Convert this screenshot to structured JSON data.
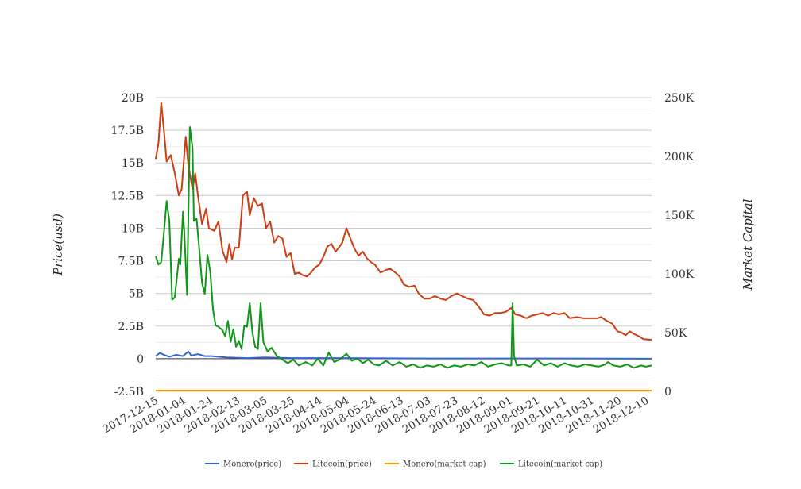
{
  "chart_data": {
    "type": "line",
    "ylabel": "Price(usd)",
    "y2label": "Market Capital",
    "x_tick_labels": [
      "2017-12-15",
      "2018-01-04",
      "2018-01-24",
      "2018-02-13",
      "2018-03-05",
      "2018-03-25",
      "2018-04-14",
      "2018-05-04",
      "2018-05-24",
      "2018-06-13",
      "2018-07-03",
      "2018-07-23",
      "2018-08-12",
      "2018-09-01",
      "2018-09-21",
      "2018-10-11",
      "2018-10-31",
      "2018-11-20",
      "2018-12-10"
    ],
    "x_range": [
      "2017-12-15",
      "2018-12-14"
    ],
    "y_ticks": [
      "-2.5B",
      "0",
      "2.5B",
      "5B",
      "7.5B",
      "10B",
      "12.5B",
      "15B",
      "17.5B",
      "20B"
    ],
    "y_range": [
      -2500000000,
      20000000000
    ],
    "y2_ticks": [
      "0",
      "50K",
      "100K",
      "150K",
      "200K",
      "250K"
    ],
    "y2_range": [
      0,
      250000
    ],
    "grid": true,
    "legend_position": "bottom",
    "series": [
      {
        "name": "Monero(price)",
        "color": "#3366cc",
        "axis": "left",
        "points": [
          [
            "2017-12-15",
            200000000.0
          ],
          [
            "2017-12-18",
            450000000.0
          ],
          [
            "2017-12-21",
            300000000.0
          ],
          [
            "2017-12-25",
            150000000.0
          ],
          [
            "2017-12-30",
            300000000.0
          ],
          [
            "2018-01-04",
            200000000.0
          ],
          [
            "2018-01-08",
            550000000.0
          ],
          [
            "2018-01-10",
            250000000.0
          ],
          [
            "2018-01-15",
            350000000.0
          ],
          [
            "2018-01-20",
            200000000.0
          ],
          [
            "2018-01-25",
            200000000.0
          ],
          [
            "2018-02-05",
            100000000.0
          ],
          [
            "2018-02-20",
            50000000.0
          ],
          [
            "2018-03-05",
            100000000.0
          ],
          [
            "2018-03-25",
            50000000.0
          ],
          [
            "2018-05-04",
            50000000.0
          ],
          [
            "2018-07-03",
            20000000.0
          ],
          [
            "2018-09-21",
            20000000.0
          ],
          [
            "2018-10-11",
            20000000.0
          ],
          [
            "2018-12-14",
            0.0
          ]
        ]
      },
      {
        "name": "Litecoin(price)",
        "color": "#cc3d14",
        "axis": "left",
        "points": [
          [
            "2017-12-15",
            15300000000.0
          ],
          [
            "2017-12-17",
            16500000000.0
          ],
          [
            "2017-12-19",
            19600000000.0
          ],
          [
            "2017-12-21",
            17500000000.0
          ],
          [
            "2017-12-23",
            15100000000.0
          ],
          [
            "2017-12-26",
            15600000000.0
          ],
          [
            "2017-12-29",
            14200000000.0
          ],
          [
            "2018-01-01",
            12500000000.0
          ],
          [
            "2018-01-03",
            13000000000.0
          ],
          [
            "2018-01-06",
            17000000000.0
          ],
          [
            "2018-01-08",
            14800000000.0
          ],
          [
            "2018-01-11",
            13000000000.0
          ],
          [
            "2018-01-13",
            14200000000.0
          ],
          [
            "2018-01-15",
            12500000000.0
          ],
          [
            "2018-01-18",
            10300000000.0
          ],
          [
            "2018-01-21",
            11500000000.0
          ],
          [
            "2018-01-23",
            10000000000.0
          ],
          [
            "2018-01-27",
            9800000000.0
          ],
          [
            "2018-01-30",
            10500000000.0
          ],
          [
            "2018-02-02",
            8300000000.0
          ],
          [
            "2018-02-05",
            7400000000.0
          ],
          [
            "2018-02-07",
            8800000000.0
          ],
          [
            "2018-02-09",
            7600000000.0
          ],
          [
            "2018-02-11",
            8500000000.0
          ],
          [
            "2018-02-14",
            8500000000.0
          ],
          [
            "2018-02-17",
            12500000000.0
          ],
          [
            "2018-02-20",
            12800000000.0
          ],
          [
            "2018-02-22",
            11000000000.0
          ],
          [
            "2018-02-25",
            12300000000.0
          ],
          [
            "2018-02-28",
            11700000000.0
          ],
          [
            "2018-03-03",
            11900000000.0
          ],
          [
            "2018-03-06",
            10000000000.0
          ],
          [
            "2018-03-09",
            10500000000.0
          ],
          [
            "2018-03-12",
            8900000000.0
          ],
          [
            "2018-03-15",
            9400000000.0
          ],
          [
            "2018-03-18",
            9200000000.0
          ],
          [
            "2018-03-21",
            7800000000.0
          ],
          [
            "2018-03-24",
            8100000000.0
          ],
          [
            "2018-03-27",
            6500000000.0
          ],
          [
            "2018-03-30",
            6600000000.0
          ],
          [
            "2018-04-02",
            6400000000.0
          ],
          [
            "2018-04-05",
            6300000000.0
          ],
          [
            "2018-04-08",
            6600000000.0
          ],
          [
            "2018-04-11",
            7000000000.0
          ],
          [
            "2018-04-14",
            7200000000.0
          ],
          [
            "2018-04-17",
            7800000000.0
          ],
          [
            "2018-04-20",
            8600000000.0
          ],
          [
            "2018-04-23",
            8800000000.0
          ],
          [
            "2018-04-26",
            8200000000.0
          ],
          [
            "2018-04-29",
            8600000000.0
          ],
          [
            "2018-05-01",
            8900000000.0
          ],
          [
            "2018-05-04",
            10000000000.0
          ],
          [
            "2018-05-07",
            9200000000.0
          ],
          [
            "2018-05-10",
            8400000000.0
          ],
          [
            "2018-05-13",
            7900000000.0
          ],
          [
            "2018-05-16",
            8200000000.0
          ],
          [
            "2018-05-19",
            7700000000.0
          ],
          [
            "2018-05-22",
            7400000000.0
          ],
          [
            "2018-05-25",
            7200000000.0
          ],
          [
            "2018-05-29",
            6600000000.0
          ],
          [
            "2018-06-02",
            6800000000.0
          ],
          [
            "2018-06-05",
            6900000000.0
          ],
          [
            "2018-06-09",
            6600000000.0
          ],
          [
            "2018-06-12",
            6300000000.0
          ],
          [
            "2018-06-15",
            5700000000.0
          ],
          [
            "2018-06-19",
            5500000000.0
          ],
          [
            "2018-06-23",
            5600000000.0
          ],
          [
            "2018-06-26",
            5000000000.0
          ],
          [
            "2018-06-30",
            4600000000.0
          ],
          [
            "2018-07-04",
            4600000000.0
          ],
          [
            "2018-07-08",
            4800000000.0
          ],
          [
            "2018-07-12",
            4600000000.0
          ],
          [
            "2018-07-16",
            4500000000.0
          ],
          [
            "2018-07-20",
            4800000000.0
          ],
          [
            "2018-07-24",
            5000000000.0
          ],
          [
            "2018-07-28",
            4800000000.0
          ],
          [
            "2018-08-01",
            4600000000.0
          ],
          [
            "2018-08-05",
            4500000000.0
          ],
          [
            "2018-08-09",
            4000000000.0
          ],
          [
            "2018-08-13",
            3400000000.0
          ],
          [
            "2018-08-17",
            3300000000.0
          ],
          [
            "2018-08-21",
            3500000000.0
          ],
          [
            "2018-08-25",
            3500000000.0
          ],
          [
            "2018-08-29",
            3600000000.0
          ],
          [
            "2018-09-02",
            3900000000.0
          ],
          [
            "2018-09-05",
            3400000000.0
          ],
          [
            "2018-09-09",
            3300000000.0
          ],
          [
            "2018-09-13",
            3100000000.0
          ],
          [
            "2018-09-17",
            3300000000.0
          ],
          [
            "2018-09-21",
            3400000000.0
          ],
          [
            "2018-09-25",
            3500000000.0
          ],
          [
            "2018-09-29",
            3300000000.0
          ],
          [
            "2018-10-03",
            3500000000.0
          ],
          [
            "2018-10-07",
            3400000000.0
          ],
          [
            "2018-10-11",
            3500000000.0
          ],
          [
            "2018-10-15",
            3100000000.0
          ],
          [
            "2018-10-20",
            3200000000.0
          ],
          [
            "2018-10-25",
            3100000000.0
          ],
          [
            "2018-10-30",
            3100000000.0
          ],
          [
            "2018-11-04",
            3100000000.0
          ],
          [
            "2018-11-07",
            3200000000.0
          ],
          [
            "2018-11-11",
            2900000000.0
          ],
          [
            "2018-11-15",
            2700000000.0
          ],
          [
            "2018-11-19",
            2100000000.0
          ],
          [
            "2018-11-22",
            2000000000.0
          ],
          [
            "2018-11-25",
            1800000000.0
          ],
          [
            "2018-11-28",
            2100000000.0
          ],
          [
            "2018-12-01",
            1900000000.0
          ],
          [
            "2018-12-05",
            1700000000.0
          ],
          [
            "2018-12-08",
            1500000000.0
          ],
          [
            "2018-12-14",
            1450000000.0
          ]
        ]
      },
      {
        "name": "Monero(market cap)",
        "color": "#ff9900",
        "axis": "right",
        "points": [
          [
            "2017-12-15",
            0.5
          ],
          [
            "2018-06-15",
            0.3
          ],
          [
            "2018-12-14",
            0.2
          ]
        ]
      },
      {
        "name": "Litecoin(market cap)",
        "color": "#109618",
        "axis": "right",
        "points": [
          [
            "2017-12-15",
            115000
          ],
          [
            "2017-12-17",
            108000
          ],
          [
            "2017-12-19",
            110000
          ],
          [
            "2017-12-21",
            135000
          ],
          [
            "2017-12-23",
            162000
          ],
          [
            "2017-12-25",
            145000
          ],
          [
            "2017-12-27",
            78000
          ],
          [
            "2017-12-29",
            80000
          ],
          [
            "2018-01-01",
            113000
          ],
          [
            "2018-01-02",
            108000
          ],
          [
            "2018-01-04",
            153000
          ],
          [
            "2018-01-05",
            135000
          ],
          [
            "2018-01-07",
            82000
          ],
          [
            "2018-01-09",
            225000
          ],
          [
            "2018-01-11",
            207000
          ],
          [
            "2018-01-12",
            145000
          ],
          [
            "2018-01-14",
            147000
          ],
          [
            "2018-01-16",
            120000
          ],
          [
            "2018-01-18",
            92000
          ],
          [
            "2018-01-20",
            83000
          ],
          [
            "2018-01-22",
            116000
          ],
          [
            "2018-01-24",
            102000
          ],
          [
            "2018-01-26",
            70000
          ],
          [
            "2018-01-28",
            56000
          ],
          [
            "2018-01-30",
            55000
          ],
          [
            "2018-02-02",
            52000
          ],
          [
            "2018-02-04",
            47000
          ],
          [
            "2018-02-06",
            60000
          ],
          [
            "2018-02-08",
            42000
          ],
          [
            "2018-02-10",
            53000
          ],
          [
            "2018-02-12",
            38000
          ],
          [
            "2018-02-14",
            43000
          ],
          [
            "2018-02-16",
            36000
          ],
          [
            "2018-02-18",
            56000
          ],
          [
            "2018-02-20",
            55000
          ],
          [
            "2018-02-22",
            75000
          ],
          [
            "2018-02-24",
            50000
          ],
          [
            "2018-02-26",
            38000
          ],
          [
            "2018-02-28",
            36000
          ],
          [
            "2018-03-02",
            75000
          ],
          [
            "2018-03-04",
            42000
          ],
          [
            "2018-03-07",
            34000
          ],
          [
            "2018-03-10",
            37000
          ],
          [
            "2018-03-14",
            30000
          ],
          [
            "2018-03-18",
            27000
          ],
          [
            "2018-03-22",
            24000
          ],
          [
            "2018-03-26",
            27000
          ],
          [
            "2018-03-30",
            22000
          ],
          [
            "2018-04-04",
            25000
          ],
          [
            "2018-04-09",
            22000
          ],
          [
            "2018-04-13",
            28000
          ],
          [
            "2018-04-17",
            22000
          ],
          [
            "2018-04-21",
            33000
          ],
          [
            "2018-04-25",
            25000
          ],
          [
            "2018-04-29",
            27000
          ],
          [
            "2018-05-04",
            32000
          ],
          [
            "2018-05-08",
            26000
          ],
          [
            "2018-05-12",
            28000
          ],
          [
            "2018-05-16",
            24000
          ],
          [
            "2018-05-20",
            27000
          ],
          [
            "2018-05-24",
            23000
          ],
          [
            "2018-05-28",
            22000
          ],
          [
            "2018-06-02",
            26000
          ],
          [
            "2018-06-07",
            22000
          ],
          [
            "2018-06-12",
            25000
          ],
          [
            "2018-06-17",
            21000
          ],
          [
            "2018-06-22",
            23000
          ],
          [
            "2018-06-27",
            20000
          ],
          [
            "2018-07-02",
            22000
          ],
          [
            "2018-07-07",
            21000
          ],
          [
            "2018-07-12",
            23000
          ],
          [
            "2018-07-17",
            20000
          ],
          [
            "2018-07-22",
            22000
          ],
          [
            "2018-07-27",
            21000
          ],
          [
            "2018-08-01",
            23000
          ],
          [
            "2018-08-06",
            22000
          ],
          [
            "2018-08-11",
            25000
          ],
          [
            "2018-08-16",
            21000
          ],
          [
            "2018-08-21",
            23000
          ],
          [
            "2018-08-26",
            24000
          ],
          [
            "2018-08-31",
            22000
          ],
          [
            "2018-09-02",
            22000
          ],
          [
            "2018-09-03",
            75000
          ],
          [
            "2018-09-04",
            30000
          ],
          [
            "2018-09-06",
            22000
          ],
          [
            "2018-09-11",
            23000
          ],
          [
            "2018-09-16",
            21000
          ],
          [
            "2018-09-21",
            27000
          ],
          [
            "2018-09-26",
            22000
          ],
          [
            "2018-10-01",
            24000
          ],
          [
            "2018-10-06",
            21000
          ],
          [
            "2018-10-11",
            24000
          ],
          [
            "2018-10-16",
            22000
          ],
          [
            "2018-10-21",
            21000
          ],
          [
            "2018-10-26",
            23000
          ],
          [
            "2018-10-31",
            22000
          ],
          [
            "2018-11-05",
            21000
          ],
          [
            "2018-11-10",
            23000
          ],
          [
            "2018-11-12",
            25000
          ],
          [
            "2018-11-16",
            22000
          ],
          [
            "2018-11-21",
            21000
          ],
          [
            "2018-11-26",
            23000
          ],
          [
            "2018-12-01",
            20000
          ],
          [
            "2018-12-06",
            22000
          ],
          [
            "2018-12-10",
            21000
          ],
          [
            "2018-12-14",
            22000
          ]
        ]
      }
    ]
  }
}
